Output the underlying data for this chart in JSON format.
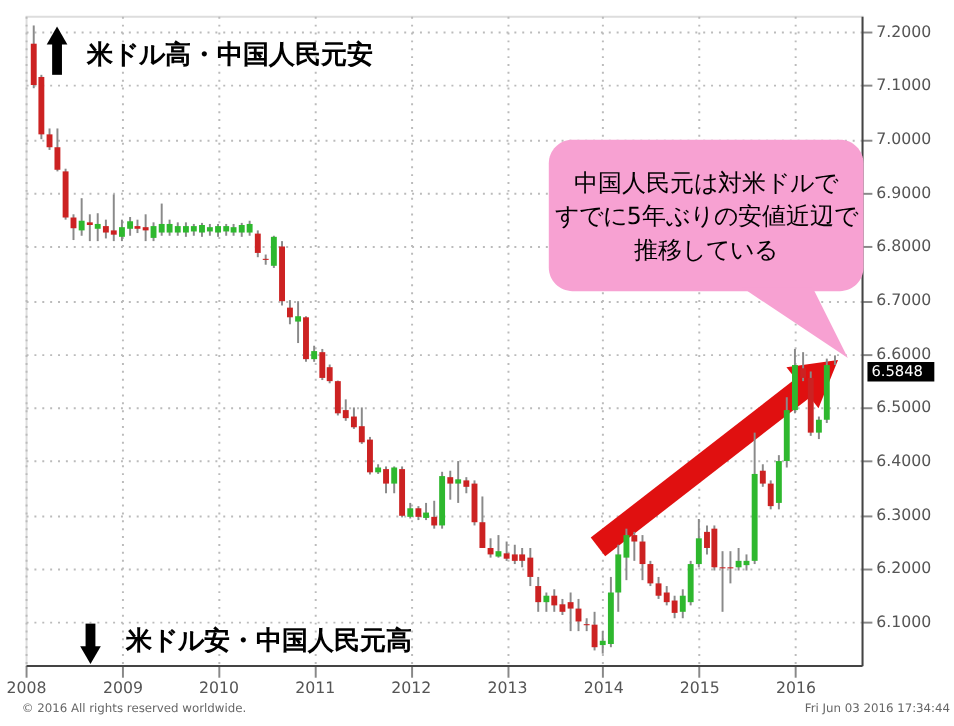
{
  "chart_data": {
    "type": "candlestick",
    "x": [
      "2008-02",
      "2008-03",
      "2008-04",
      "2008-05",
      "2008-06",
      "2008-07",
      "2008-08",
      "2008-09",
      "2008-10",
      "2008-11",
      "2008-12",
      "2009-01",
      "2009-02",
      "2009-03",
      "2009-04",
      "2009-05",
      "2009-06",
      "2009-07",
      "2009-08",
      "2009-09",
      "2009-10",
      "2009-11",
      "2009-12",
      "2010-01",
      "2010-02",
      "2010-03",
      "2010-04",
      "2010-05",
      "2010-06",
      "2010-07",
      "2010-08",
      "2010-09",
      "2010-10",
      "2010-11",
      "2010-12",
      "2011-01",
      "2011-02",
      "2011-03",
      "2011-04",
      "2011-05",
      "2011-06",
      "2011-07",
      "2011-08",
      "2011-09",
      "2011-10",
      "2011-11",
      "2011-12",
      "2012-01",
      "2012-02",
      "2012-03",
      "2012-04",
      "2012-05",
      "2012-06",
      "2012-07",
      "2012-08",
      "2012-09",
      "2012-10",
      "2012-11",
      "2012-12",
      "2013-01",
      "2013-02",
      "2013-03",
      "2013-04",
      "2013-05",
      "2013-06",
      "2013-07",
      "2013-08",
      "2013-09",
      "2013-10",
      "2013-11",
      "2013-12",
      "2014-01",
      "2014-02",
      "2014-03",
      "2014-04",
      "2014-05",
      "2014-06",
      "2014-07",
      "2014-08",
      "2014-09",
      "2014-10",
      "2014-11",
      "2014-12",
      "2015-01",
      "2015-02",
      "2015-03",
      "2015-04",
      "2015-05",
      "2015-06",
      "2015-07",
      "2015-08",
      "2015-09",
      "2015-10",
      "2015-11",
      "2015-12",
      "2016-01",
      "2016-02",
      "2016-03",
      "2016-04",
      "2016-05",
      "2016-06"
    ],
    "ohlc": [
      [
        7.178,
        7.212,
        7.095,
        7.101
      ],
      [
        7.116,
        7.12,
        7.0,
        7.009
      ],
      [
        7.009,
        7.02,
        6.98,
        6.985
      ],
      [
        6.985,
        7.02,
        6.94,
        6.943
      ],
      [
        6.94,
        6.945,
        6.85,
        6.854
      ],
      [
        6.854,
        6.86,
        6.812,
        6.834
      ],
      [
        6.83,
        6.89,
        6.82,
        6.848
      ],
      [
        6.845,
        6.86,
        6.81,
        6.84
      ],
      [
        6.833,
        6.862,
        6.81,
        6.842
      ],
      [
        6.838,
        6.85,
        6.815,
        6.826
      ],
      [
        6.83,
        6.897,
        6.81,
        6.822
      ],
      [
        6.818,
        6.85,
        6.81,
        6.836
      ],
      [
        6.833,
        6.855,
        6.82,
        6.847
      ],
      [
        6.838,
        6.85,
        6.825,
        6.833
      ],
      [
        6.836,
        6.86,
        6.81,
        6.83
      ],
      [
        6.816,
        6.845,
        6.81,
        6.838
      ],
      [
        6.826,
        6.88,
        6.82,
        6.842
      ],
      [
        6.826,
        6.85,
        6.82,
        6.842
      ],
      [
        6.826,
        6.845,
        6.82,
        6.838
      ],
      [
        6.826,
        6.845,
        6.818,
        6.838
      ],
      [
        6.828,
        6.842,
        6.82,
        6.838
      ],
      [
        6.826,
        6.844,
        6.818,
        6.84
      ],
      [
        6.828,
        6.842,
        6.82,
        6.836
      ],
      [
        6.826,
        6.842,
        6.818,
        6.838
      ],
      [
        6.828,
        6.842,
        6.82,
        6.838
      ],
      [
        6.826,
        6.842,
        6.82,
        6.836
      ],
      [
        6.826,
        6.844,
        6.818,
        6.84
      ],
      [
        6.826,
        6.848,
        6.82,
        6.842
      ],
      [
        6.824,
        6.83,
        6.78,
        6.788
      ],
      [
        6.777,
        6.785,
        6.766,
        6.775
      ],
      [
        6.764,
        6.82,
        6.76,
        6.818
      ],
      [
        6.8,
        6.81,
        6.69,
        6.698
      ],
      [
        6.686,
        6.7,
        6.655,
        6.668
      ],
      [
        6.66,
        6.698,
        6.62,
        6.67
      ],
      [
        6.668,
        6.67,
        6.585,
        6.59
      ],
      [
        6.59,
        6.615,
        6.585,
        6.605
      ],
      [
        6.603,
        6.609,
        6.551,
        6.555
      ],
      [
        6.575,
        6.58,
        6.545,
        6.549
      ],
      [
        6.549,
        6.55,
        6.485,
        6.489
      ],
      [
        6.495,
        6.515,
        6.475,
        6.48
      ],
      [
        6.483,
        6.5,
        6.46,
        6.463
      ],
      [
        6.465,
        6.5,
        6.432,
        6.435
      ],
      [
        6.44,
        6.445,
        6.375,
        6.379
      ],
      [
        6.379,
        6.394,
        6.376,
        6.388
      ],
      [
        6.385,
        6.39,
        6.34,
        6.358
      ],
      [
        6.358,
        6.39,
        6.34,
        6.388
      ],
      [
        6.385,
        6.39,
        6.295,
        6.298
      ],
      [
        6.296,
        6.322,
        6.293,
        6.312
      ],
      [
        6.312,
        6.316,
        6.29,
        6.296
      ],
      [
        6.294,
        6.322,
        6.29,
        6.304
      ],
      [
        6.296,
        6.326,
        6.274,
        6.28
      ],
      [
        6.28,
        6.38,
        6.274,
        6.372
      ],
      [
        6.37,
        6.382,
        6.328,
        6.358
      ],
      [
        6.358,
        6.4,
        6.322,
        6.366
      ],
      [
        6.364,
        6.37,
        6.34,
        6.352
      ],
      [
        6.358,
        6.364,
        6.28,
        6.286
      ],
      [
        6.286,
        6.334,
        6.238,
        6.238
      ],
      [
        6.238,
        6.256,
        6.22,
        6.226
      ],
      [
        6.222,
        6.262,
        6.22,
        6.232
      ],
      [
        6.228,
        6.25,
        6.214,
        6.218
      ],
      [
        6.226,
        6.244,
        6.208,
        6.214
      ],
      [
        6.226,
        6.238,
        6.202,
        6.214
      ],
      [
        6.22,
        6.238,
        6.167,
        6.184
      ],
      [
        6.167,
        6.184,
        6.119,
        6.137
      ],
      [
        6.137,
        6.155,
        6.119,
        6.149
      ],
      [
        6.149,
        6.161,
        6.119,
        6.131
      ],
      [
        6.133,
        6.143,
        6.113,
        6.119
      ],
      [
        6.137,
        6.155,
        6.083,
        6.125
      ],
      [
        6.125,
        6.143,
        6.083,
        6.101
      ],
      [
        6.096,
        6.107,
        6.083,
        6.094
      ],
      [
        6.095,
        6.119,
        6.047,
        6.053
      ],
      [
        6.057,
        6.083,
        6.041,
        6.065
      ],
      [
        6.059,
        6.184,
        6.053,
        6.155
      ],
      [
        6.155,
        6.244,
        6.119,
        6.226
      ],
      [
        6.22,
        6.274,
        6.178,
        6.262
      ],
      [
        6.262,
        6.268,
        6.214,
        6.25
      ],
      [
        6.25,
        6.262,
        6.178,
        6.208
      ],
      [
        6.208,
        6.214,
        6.167,
        6.172
      ],
      [
        6.172,
        6.184,
        6.143,
        6.149
      ],
      [
        6.155,
        6.167,
        6.131,
        6.137
      ],
      [
        6.14,
        6.149,
        6.107,
        6.117
      ],
      [
        6.119,
        6.161,
        6.107,
        6.149
      ],
      [
        6.137,
        6.214,
        6.131,
        6.208
      ],
      [
        6.208,
        6.292,
        6.202,
        6.256
      ],
      [
        6.268,
        6.28,
        6.226,
        6.238
      ],
      [
        6.274,
        6.28,
        6.196,
        6.202
      ],
      [
        6.202,
        6.232,
        6.119,
        6.2
      ],
      [
        6.202,
        6.232,
        6.172,
        6.2
      ],
      [
        6.202,
        6.238,
        6.196,
        6.214
      ],
      [
        6.206,
        6.226,
        6.196,
        6.214
      ],
      [
        6.214,
        6.453,
        6.208,
        6.376
      ],
      [
        6.382,
        6.394,
        6.352,
        6.358
      ],
      [
        6.358,
        6.364,
        6.31,
        6.316
      ],
      [
        6.322,
        6.411,
        6.31,
        6.4
      ],
      [
        6.4,
        6.519,
        6.388,
        6.495
      ],
      [
        6.495,
        6.609,
        6.489,
        6.579
      ],
      [
        6.573,
        6.603,
        6.549,
        6.555
      ],
      [
        6.555,
        6.567,
        6.447,
        6.453
      ],
      [
        6.453,
        6.483,
        6.441,
        6.477
      ],
      [
        6.477,
        6.591,
        6.471,
        6.579
      ],
      [
        6.585,
        6.597,
        6.579,
        6.5848
      ]
    ],
    "xlim": [
      "2008-01-01",
      "2016-09-10"
    ],
    "xticks": [
      "2008",
      "2009",
      "2010",
      "2011",
      "2012",
      "2013",
      "2014",
      "2015",
      "2016"
    ],
    "ylim": [
      6.02,
      7.23
    ],
    "yticks": [
      {
        "value": 6.1,
        "label": "6.1000"
      },
      {
        "value": 6.2,
        "label": "6.2000"
      },
      {
        "value": 6.3,
        "label": "6.3000"
      },
      {
        "value": 6.4,
        "label": "6.4000"
      },
      {
        "value": 6.5,
        "label": "6.5000"
      },
      {
        "value": 6.6,
        "label": "6.6000"
      },
      {
        "value": 6.7,
        "label": "6.7000"
      },
      {
        "value": 6.8,
        "label": "6.8000"
      },
      {
        "value": 6.9,
        "label": "6.9000"
      },
      {
        "value": 7.0,
        "label": "7.0000"
      },
      {
        "value": 7.1,
        "label": "7.1000"
      },
      {
        "value": 7.2,
        "label": "7.2000"
      }
    ],
    "grid": true,
    "annotations": [
      "米ドル高・中国人民元安",
      "米ドル安・中国人民元高",
      "中国人民元は対米ドルですでに5年ぶりの安値近辺で推移している",
      "6.5848",
      "© 2016 All rights reserved worldwide.",
      "Fri Jun 03 2016 17:34:44"
    ]
  }
}
